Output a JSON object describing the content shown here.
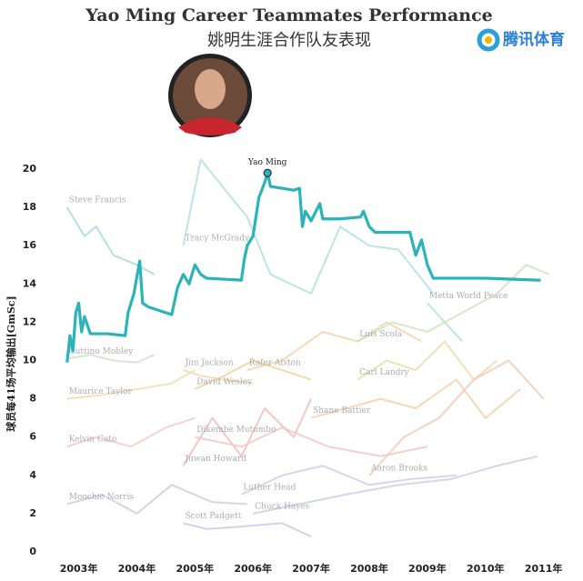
{
  "chart_data": {
    "type": "line",
    "title": "Yao Ming Career Teammates Performance",
    "subtitle": "姚明生涯合作队友表现",
    "logo": "腾讯体育",
    "y_label": "球员每41场平均输出[GmSc]",
    "xlim": [
      2002.35,
      2011.35
    ],
    "xticks": [
      {
        "value": 2003,
        "label": "2003年"
      },
      {
        "value": 2004,
        "label": "2004年"
      },
      {
        "value": 2005,
        "label": "2005年"
      },
      {
        "value": 2006,
        "label": "2006年"
      },
      {
        "value": 2007,
        "label": "2007年"
      },
      {
        "value": 2008,
        "label": "2008年"
      },
      {
        "value": 2009,
        "label": "2009年"
      },
      {
        "value": 2010,
        "label": "2010年"
      },
      {
        "value": 2011,
        "label": "2011年"
      }
    ],
    "ylim": [
      0,
      21
    ],
    "yticks": [
      0,
      2,
      4,
      6,
      8,
      10,
      12,
      14,
      16,
      18,
      20
    ],
    "series": [
      {
        "name": "Steve Francis",
        "color": "#a8dada",
        "x": [
          2002.8,
          2003.1,
          2003.3,
          2003.6,
          2004.0,
          2004.3
        ],
        "values": [
          18,
          16.5,
          17,
          15.5,
          15,
          14.5
        ]
      },
      {
        "name": "Tracy McGrady",
        "color": "#b2dfdf",
        "x": [
          2004.8,
          2005.1,
          2005.5,
          2005.9,
          2006.3,
          2007.0,
          2007.5,
          2008.0,
          2008.5,
          2009.1
        ],
        "values": [
          16,
          20.5,
          19,
          17.5,
          14.5,
          13.5,
          17,
          16,
          15.8,
          13.5
        ]
      },
      {
        "name": "Cuttino Mobley",
        "color": "#cfe3c9",
        "x": [
          2002.8,
          2003.2,
          2003.6,
          2004.0,
          2004.3
        ],
        "values": [
          10.1,
          10.3,
          10,
          9.9,
          10.3
        ]
      },
      {
        "name": "Maurice Taylor",
        "color": "#f2dcb5",
        "x": [
          2002.8,
          2003.4,
          2004.0,
          2004.6,
          2005.0
        ],
        "values": [
          8,
          8.2,
          8.5,
          8.8,
          9.5
        ]
      },
      {
        "name": "Kelvin Cato",
        "color": "#f4cbcb",
        "x": [
          2002.8,
          2003.3,
          2003.9,
          2004.5,
          2005.0
        ],
        "values": [
          5.5,
          6,
          5.5,
          6.5,
          7
        ]
      },
      {
        "name": "Moochie Norris",
        "color": "#cdcde8",
        "x": [
          2002.8,
          2003.4,
          2004.0,
          2004.6,
          2005.3,
          2005.9
        ],
        "values": [
          2.5,
          3,
          2,
          3.5,
          2.6,
          2.5
        ]
      },
      {
        "name": "Jim Jackson",
        "color": "#f2dbab",
        "x": [
          2004.8,
          2005.1,
          2005.5,
          2006.0
        ],
        "values": [
          9.5,
          9.2,
          9,
          8.8
        ]
      },
      {
        "name": "David Wesley",
        "color": "#eed49b",
        "x": [
          2005.0,
          2005.5,
          2006.0,
          2006.5,
          2007.0
        ],
        "values": [
          8.5,
          9.2,
          10,
          9.5,
          9
        ]
      },
      {
        "name": "Juwan Howard",
        "color": "#f3bcbc",
        "x": [
          2004.8,
          2005.3,
          2005.8,
          2006.2,
          2006.7,
          2007.0
        ],
        "values": [
          4.5,
          7,
          5,
          7.5,
          6,
          8
        ]
      },
      {
        "name": "Scott Padgett",
        "color": "#c8cde8",
        "x": [
          2004.8,
          2005.2,
          2005.7,
          2006.5,
          2007.0
        ],
        "values": [
          1.5,
          1.2,
          1.3,
          1.5,
          0.8
        ]
      },
      {
        "name": "Rafer Alston",
        "color": "#f5d3ab",
        "x": [
          2005.9,
          2006.5,
          2007.2,
          2007.8,
          2008.3,
          2008.9
        ],
        "values": [
          9.5,
          10,
          11.5,
          11,
          12,
          11
        ]
      },
      {
        "name": "Metta World Peace",
        "color": "#b7dede",
        "x": [
          2009.0,
          2009.3,
          2009.6
        ],
        "values": [
          13,
          12,
          11
        ]
      },
      {
        "name": "Carl Landry",
        "color": "#e6e0a6",
        "x": [
          2007.8,
          2008.3,
          2008.8,
          2009.3,
          2009.8,
          2010.2
        ],
        "values": [
          9,
          10,
          9.5,
          11,
          9,
          10
        ]
      },
      {
        "name": "Luis Scola",
        "color": "#cde4c2",
        "x": [
          2007.8,
          2008.4,
          2009.0,
          2009.6,
          2010.2,
          2010.7,
          2011.1
        ],
        "values": [
          11,
          12,
          11.5,
          12.5,
          13.5,
          15,
          14.5
        ]
      },
      {
        "name": "Shane Battier",
        "color": "#f4d1ab",
        "x": [
          2007.0,
          2007.6,
          2008.2,
          2008.8,
          2009.5,
          2010.0,
          2010.6
        ],
        "values": [
          7,
          7.5,
          8,
          7.5,
          9,
          7,
          8.5
        ]
      },
      {
        "name": "Dikembe Mutombo",
        "color": "#f3c6c6",
        "x": [
          2005.0,
          2005.8,
          2006.5,
          2007.3,
          2008.2,
          2009.0
        ],
        "values": [
          6,
          5.5,
          6.5,
          5.5,
          5,
          5.5
        ]
      },
      {
        "name": "Luther Head",
        "color": "#d6cae8",
        "x": [
          2005.8,
          2006.5,
          2007.2,
          2008.0,
          2008.7,
          2009.5
        ],
        "values": [
          3,
          4,
          4.5,
          3.5,
          3.8,
          4
        ]
      },
      {
        "name": "Chuck Hayes",
        "color": "#cdcfe9",
        "x": [
          2006.0,
          2006.8,
          2007.6,
          2008.5,
          2009.4,
          2010.2,
          2010.9
        ],
        "values": [
          2,
          2.5,
          3,
          3.5,
          3.8,
          4.5,
          5
        ]
      },
      {
        "name": "Aaron Brooks",
        "color": "#f3c9b8",
        "x": [
          2008.0,
          2008.6,
          2009.2,
          2009.8,
          2010.4,
          2011.0
        ],
        "values": [
          4,
          6,
          7,
          9,
          10,
          8
        ]
      },
      {
        "name": "Yao Ming",
        "color": "#2bb3b8",
        "x": [
          2002.8,
          2002.85,
          2002.9,
          2002.95,
          2003.0,
          2003.05,
          2003.1,
          2003.2,
          2003.5,
          2003.8,
          2003.85,
          2003.95,
          2004.05,
          2004.1,
          2004.2,
          2004.6,
          2004.7,
          2004.8,
          2004.9,
          2005.0,
          2005.1,
          2005.2,
          2005.8,
          2005.85,
          2005.9,
          2006.0,
          2006.1,
          2006.2,
          2006.25,
          2006.3,
          2006.7,
          2006.8,
          2006.85,
          2006.9,
          2007.0,
          2007.15,
          2007.2,
          2007.5,
          2007.85,
          2007.9,
          2008.0,
          2008.1,
          2008.7,
          2008.8,
          2008.9,
          2009.0,
          2009.1,
          2009.15,
          2010.0,
          2010.9,
          2010.95
        ],
        "values": [
          9.9,
          11.3,
          10.5,
          12.5,
          13.0,
          11.5,
          12.3,
          11.4,
          11.4,
          11.3,
          12.5,
          13.5,
          15.2,
          13.0,
          12.8,
          12.4,
          13.8,
          14.5,
          14.0,
          15.0,
          14.5,
          14.3,
          14.2,
          15.3,
          16.0,
          16.5,
          18.5,
          19.3,
          19.8,
          19.1,
          18.9,
          19.0,
          17.0,
          17.8,
          17.3,
          18.2,
          17.4,
          17.4,
          17.5,
          17.8,
          17.0,
          16.7,
          16.7,
          15.5,
          16.3,
          15.0,
          14.3,
          14.3,
          14.3,
          14.2,
          14.2
        ]
      }
    ]
  }
}
